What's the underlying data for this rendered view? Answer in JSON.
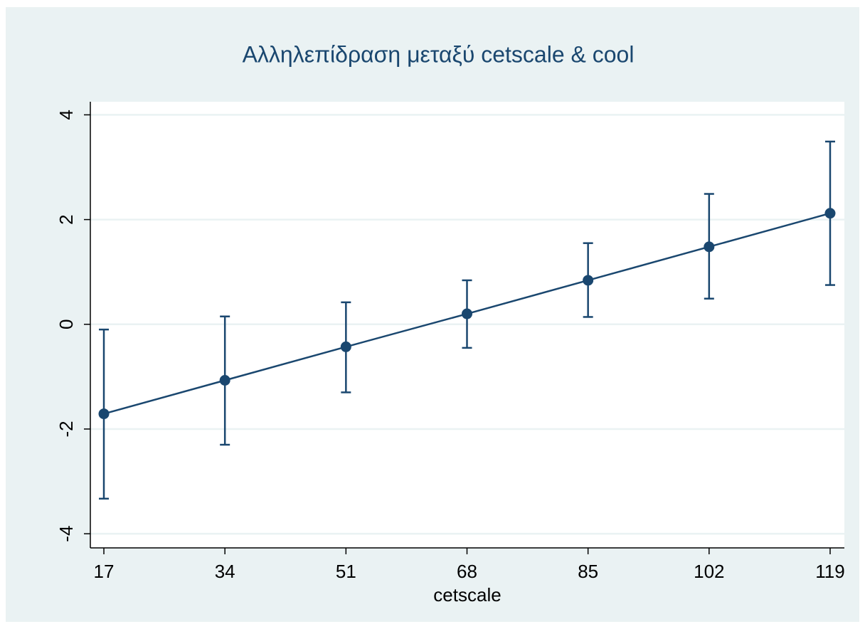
{
  "chart_data": {
    "type": "line",
    "title": "Αλληλεπίδραση μεταξύ cetscale & cool",
    "xlabel": "cetscale",
    "x": [
      17,
      34,
      51,
      68,
      85,
      102,
      119
    ],
    "series": [
      {
        "color": "#1a476f",
        "values": [
          -1.71,
          -1.07,
          -0.43,
          0.2,
          0.84,
          1.48,
          2.12
        ],
        "lower": [
          -3.33,
          -2.3,
          -1.3,
          -0.45,
          0.14,
          0.49,
          0.75
        ],
        "upper": [
          -0.1,
          0.15,
          0.42,
          0.84,
          1.55,
          2.49,
          3.49
        ]
      }
    ],
    "xlim": [
      15.1,
      121
    ],
    "xticks": [
      17,
      34,
      51,
      68,
      85,
      102,
      119
    ],
    "ylim": [
      -4.27,
      4.25
    ],
    "yticks": [
      -4,
      -2,
      0,
      2,
      4
    ],
    "grid": true
  }
}
